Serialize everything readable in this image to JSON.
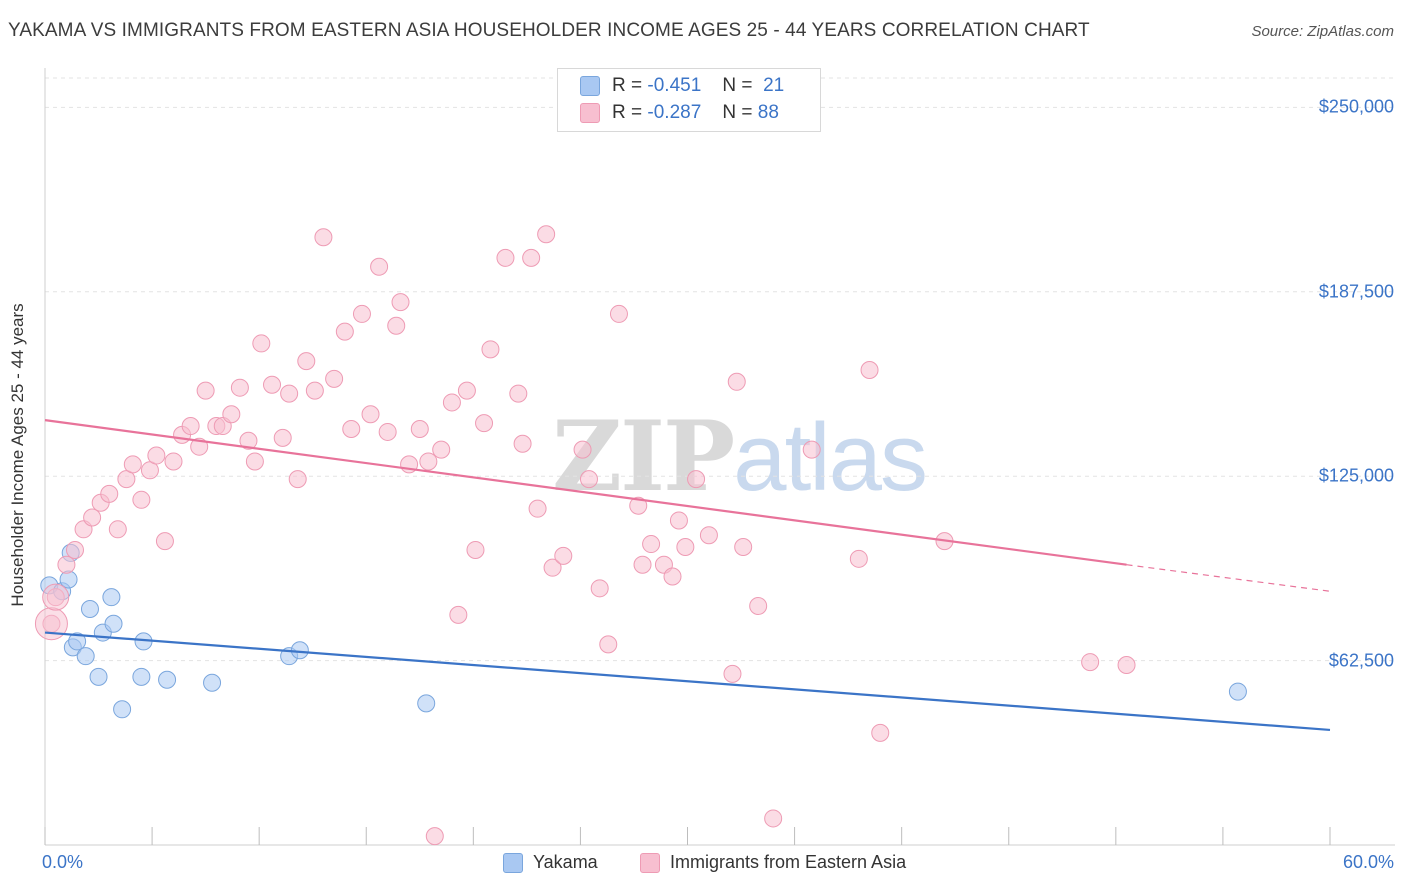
{
  "header": {
    "title": "YAKAMA VS IMMIGRANTS FROM EASTERN ASIA HOUSEHOLDER INCOME AGES 25 - 44 YEARS CORRELATION CHART",
    "source": "Source: ZipAtlas.com"
  },
  "watermark": {
    "zip": "ZIP",
    "atlas": "atlas"
  },
  "legend": {
    "rows": [
      {
        "r_label": "R =",
        "r_value": "-0.451",
        "n_label": "N =",
        "n_value": "21",
        "color": "#a9c8f2",
        "border": "#7aa6dd"
      },
      {
        "r_label": "R =",
        "r_value": "-0.287",
        "n_label": "N =",
        "n_value": "88",
        "color": "#f7bfd0",
        "border": "#ee9bb4"
      }
    ]
  },
  "bottom_legend": {
    "yakama": "Yakama",
    "eastern_asia": "Immigrants from Eastern Asia"
  },
  "chart_data": {
    "type": "scatter",
    "title": "YAKAMA VS IMMIGRANTS FROM EASTERN ASIA HOUSEHOLDER INCOME AGES 25 - 44 YEARS CORRELATION CHART",
    "xlabel": "",
    "ylabel": "Householder Income Ages 25 - 44 years",
    "xlim": [
      0,
      60
    ],
    "ylim": [
      0,
      262000
    ],
    "x_tick_labels": [
      "0.0%",
      "60.0%"
    ],
    "y_ticks": [
      {
        "value": 62500,
        "label": "$62,500"
      },
      {
        "value": 125000,
        "label": "$125,000"
      },
      {
        "value": 187500,
        "label": "$187,500"
      },
      {
        "value": 250000,
        "label": "$250,000"
      }
    ],
    "grid": true,
    "legend_position": "top-center",
    "colors": {
      "yakama": "#3b74c7",
      "eastern_asia": "#e8739a"
    },
    "series": [
      {
        "name": "Yakama",
        "color": "#a9c8f2",
        "stroke": "#7aa6dd",
        "trend": {
          "x": [
            0,
            60
          ],
          "y": [
            72000,
            39000
          ]
        },
        "points": [
          [
            0.2,
            88000
          ],
          [
            0.8,
            86000
          ],
          [
            1.1,
            90000
          ],
          [
            1.2,
            99000
          ],
          [
            1.3,
            67000
          ],
          [
            1.5,
            69000
          ],
          [
            1.9,
            64000
          ],
          [
            2.1,
            80000
          ],
          [
            2.5,
            57000
          ],
          [
            2.7,
            72000
          ],
          [
            3.1,
            84000
          ],
          [
            3.2,
            75000
          ],
          [
            3.6,
            46000
          ],
          [
            4.6,
            69000
          ],
          [
            4.5,
            57000
          ],
          [
            5.7,
            56000
          ],
          [
            7.8,
            55000
          ],
          [
            11.4,
            64000
          ],
          [
            11.9,
            66000
          ],
          [
            17.8,
            48000
          ],
          [
            55.7,
            52000
          ]
        ]
      },
      {
        "name": "Immigrants from Eastern Asia",
        "color": "#f7bfd0",
        "stroke": "#ee9bb4",
        "trend": {
          "x": [
            0,
            50.5
          ],
          "y": [
            144000,
            95000
          ],
          "dashed_to": {
            "x": 60,
            "y": 86000
          }
        },
        "points": [
          [
            0.3,
            75000
          ],
          [
            0.5,
            84000
          ],
          [
            1.0,
            95000
          ],
          [
            1.4,
            100000
          ],
          [
            1.8,
            107000
          ],
          [
            2.2,
            111000
          ],
          [
            2.6,
            116000
          ],
          [
            3.0,
            119000
          ],
          [
            3.4,
            107000
          ],
          [
            3.8,
            124000
          ],
          [
            4.1,
            129000
          ],
          [
            4.5,
            117000
          ],
          [
            4.9,
            127000
          ],
          [
            5.2,
            132000
          ],
          [
            5.6,
            103000
          ],
          [
            6.0,
            130000
          ],
          [
            6.4,
            139000
          ],
          [
            6.8,
            142000
          ],
          [
            7.2,
            135000
          ],
          [
            7.5,
            154000
          ],
          [
            8.0,
            142000
          ],
          [
            8.3,
            142000
          ],
          [
            8.7,
            146000
          ],
          [
            9.1,
            155000
          ],
          [
            9.5,
            137000
          ],
          [
            9.8,
            130000
          ],
          [
            10.1,
            170000
          ],
          [
            10.6,
            156000
          ],
          [
            11.1,
            138000
          ],
          [
            11.4,
            153000
          ],
          [
            11.8,
            124000
          ],
          [
            12.2,
            164000
          ],
          [
            12.6,
            154000
          ],
          [
            13.0,
            206000
          ],
          [
            13.5,
            158000
          ],
          [
            14.0,
            174000
          ],
          [
            14.3,
            141000
          ],
          [
            14.8,
            180000
          ],
          [
            15.2,
            146000
          ],
          [
            15.6,
            196000
          ],
          [
            16.0,
            140000
          ],
          [
            16.4,
            176000
          ],
          [
            16.6,
            184000
          ],
          [
            17.0,
            129000
          ],
          [
            17.5,
            141000
          ],
          [
            17.9,
            130000
          ],
          [
            18.2,
            3000
          ],
          [
            18.5,
            134000
          ],
          [
            19.0,
            150000
          ],
          [
            19.3,
            78000
          ],
          [
            19.7,
            154000
          ],
          [
            20.1,
            100000
          ],
          [
            20.5,
            143000
          ],
          [
            20.8,
            168000
          ],
          [
            21.5,
            199000
          ],
          [
            22.1,
            153000
          ],
          [
            22.3,
            136000
          ],
          [
            22.7,
            199000
          ],
          [
            23.0,
            114000
          ],
          [
            23.4,
            207000
          ],
          [
            23.7,
            94000
          ],
          [
            24.2,
            98000
          ],
          [
            25.1,
            134000
          ],
          [
            25.4,
            124000
          ],
          [
            25.9,
            87000
          ],
          [
            26.3,
            68000
          ],
          [
            26.8,
            180000
          ],
          [
            27.7,
            115000
          ],
          [
            27.9,
            95000
          ],
          [
            28.3,
            102000
          ],
          [
            28.9,
            95000
          ],
          [
            29.3,
            91000
          ],
          [
            29.6,
            110000
          ],
          [
            29.9,
            101000
          ],
          [
            30.4,
            124000
          ],
          [
            31.0,
            105000
          ],
          [
            32.1,
            58000
          ],
          [
            32.3,
            157000
          ],
          [
            32.6,
            101000
          ],
          [
            33.3,
            81000
          ],
          [
            34.0,
            9000
          ],
          [
            35.8,
            134000
          ],
          [
            38.0,
            97000
          ],
          [
            38.5,
            161000
          ],
          [
            39.0,
            38000
          ],
          [
            42.0,
            103000
          ],
          [
            48.8,
            62000
          ],
          [
            50.5,
            61000
          ]
        ]
      }
    ]
  }
}
